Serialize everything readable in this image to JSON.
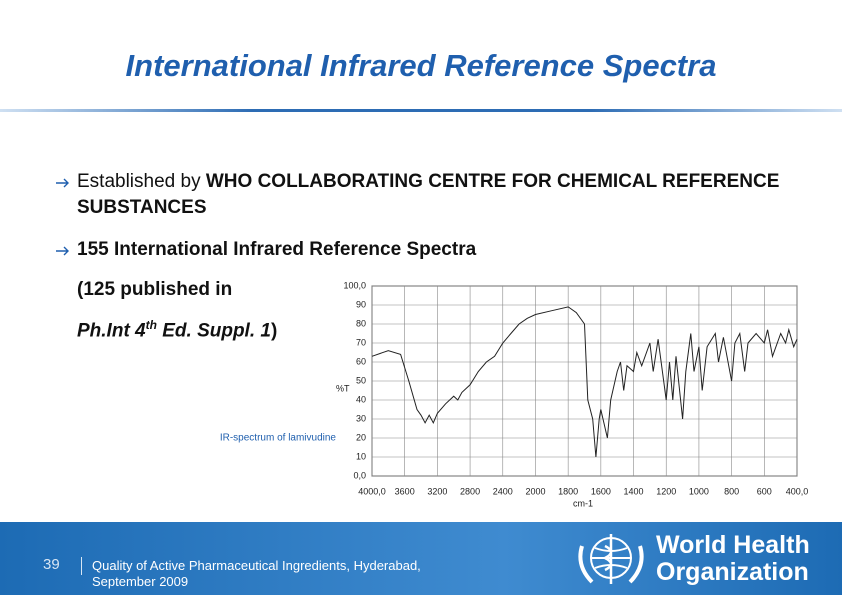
{
  "header": {
    "title": "International Infrared Reference Spectra"
  },
  "bullets": [
    {
      "parts": [
        "Established by ",
        "WHO COLLABORATING CENTRE FOR CHEMICAL REFERENCE SUBSTANCES"
      ]
    },
    {
      "parts": [
        "155 International Infrared Reference Spectra"
      ]
    }
  ],
  "note": {
    "line1": "(125 published in",
    "line2": [
      "Ph.Int 4",
      "th",
      " Ed. Suppl. 1",
      ")"
    ]
  },
  "chart_data": {
    "type": "line",
    "y_label": "%T",
    "x_label": "cm-1",
    "caption": "IR-spectrum of lamivudine",
    "color": "#222222",
    "grid": true,
    "xlim": [
      4000,
      400
    ],
    "ylim": [
      0,
      100
    ],
    "xticks": [
      {
        "value": 4000,
        "label": "4000,0"
      },
      3600,
      3200,
      2800,
      2400,
      2000,
      1800,
      1600,
      1400,
      1200,
      1000,
      800,
      600,
      {
        "value": 400,
        "label": "400,0"
      }
    ],
    "yticks": [
      {
        "value": 0,
        "label": "0,0"
      },
      10,
      20,
      30,
      40,
      50,
      60,
      70,
      80,
      90,
      {
        "value": 100,
        "label": "100,0"
      }
    ],
    "x": [
      4000,
      3800,
      3650,
      3550,
      3450,
      3400,
      3350,
      3300,
      3250,
      3200,
      3100,
      3000,
      2950,
      2900,
      2800,
      2700,
      2600,
      2500,
      2400,
      2300,
      2200,
      2100,
      2000,
      1900,
      1800,
      1750,
      1700,
      1680,
      1650,
      1630,
      1610,
      1600,
      1560,
      1540,
      1500,
      1480,
      1460,
      1440,
      1400,
      1380,
      1350,
      1300,
      1280,
      1250,
      1200,
      1180,
      1160,
      1140,
      1100,
      1080,
      1050,
      1030,
      1000,
      980,
      950,
      900,
      880,
      850,
      800,
      780,
      750,
      720,
      700,
      650,
      600,
      580,
      550,
      500,
      470,
      450,
      420,
      400
    ],
    "values": [
      63,
      66,
      64,
      50,
      35,
      32,
      28,
      32,
      28,
      33,
      38,
      42,
      40,
      44,
      48,
      55,
      60,
      63,
      70,
      75,
      80,
      83,
      85,
      87,
      89,
      86,
      80,
      40,
      30,
      10,
      30,
      35,
      20,
      40,
      55,
      60,
      45,
      58,
      55,
      65,
      58,
      70,
      55,
      72,
      40,
      60,
      40,
      63,
      30,
      55,
      75,
      55,
      68,
      45,
      68,
      75,
      60,
      73,
      50,
      70,
      75,
      55,
      70,
      75,
      70,
      77,
      63,
      75,
      70,
      77,
      68,
      72
    ]
  },
  "footer": {
    "page": "39",
    "text": "Quality of Active Pharmaceutical Ingredients, Hyderabad, September 2009",
    "org_line1": "World Health",
    "org_line2": "Organization"
  }
}
